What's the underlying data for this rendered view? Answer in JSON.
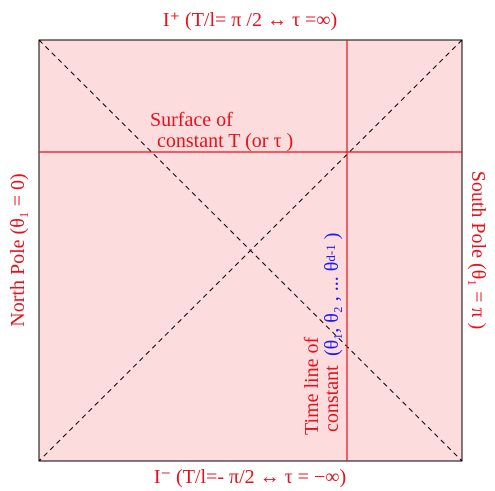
{
  "top_label": "I⁺ (T/l= π /2 ↔ τ =∞)",
  "bottom_label": "I⁻ (T/l=- π/2 ↔ τ = −∞)",
  "left_label": "North Pole (θ₁ = 0)",
  "right_label": "South Pole (θ₁ = π )",
  "surface_label": [
    "Surface of",
    "constant T (or τ )"
  ],
  "timeline_label": [
    "Time line of",
    "constant"
  ],
  "angles_label": {
    "main": "(θ₁, θ₂ ,  ...  θ",
    "sub": "d-1",
    "end": "  )"
  }
}
